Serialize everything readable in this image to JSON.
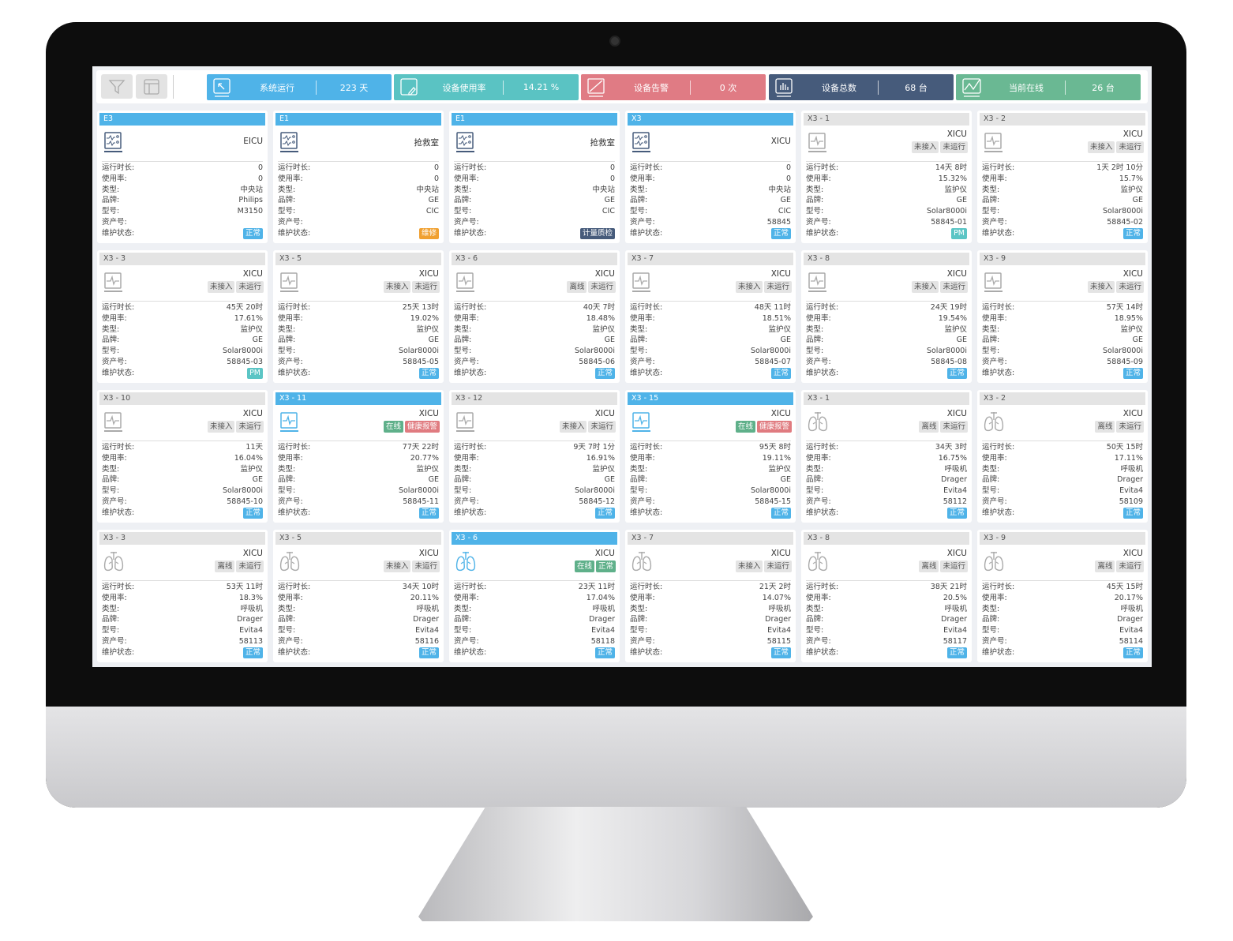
{
  "topbar": {
    "filter_icon": "filter-icon",
    "layout_icon": "layout-icon",
    "stats": [
      {
        "label": "系统运行",
        "value": "223 天",
        "color": "#4fb3e8",
        "icon": "arrow-icon"
      },
      {
        "label": "设备使用率",
        "value": "14.21 %",
        "color": "#5ac3c3",
        "icon": "edit-icon"
      },
      {
        "label": "设备告警",
        "value": "0 次",
        "color": "#e07b84",
        "icon": "slash-icon"
      },
      {
        "label": "设备总数",
        "value": "68 台",
        "color": "#465b7b",
        "icon": "bar-chart-icon"
      },
      {
        "label": "当前在线",
        "value": "26 台",
        "color": "#6ab893",
        "icon": "line-chart-icon"
      }
    ]
  },
  "labels": {
    "runtime": "运行时长:",
    "usage": "使用率:",
    "type": "类型:",
    "brand": "品牌:",
    "model": "型号:",
    "asset": "资产号:",
    "status": "维护状态:"
  },
  "colors": {
    "tag_gray": "#e4e4e4",
    "online": "#5fb08a",
    "alarm": "#e07b80",
    "normal": "#4fb3e8",
    "pm": "#5bc5c5",
    "repair": "#f0a030",
    "metrology": "#465b7b",
    "accent": "#4fb3e8"
  },
  "cards": [
    {
      "id": "E3",
      "active": true,
      "icon": "station",
      "location": "EICU",
      "tags": [],
      "runtime": "0",
      "usage": "0",
      "type": "中央站",
      "brand": "Philips",
      "model": "M3150",
      "asset": "",
      "status": "正常",
      "status_color": "normal"
    },
    {
      "id": "E1",
      "active": true,
      "icon": "station",
      "location": "抢救室",
      "tags": [],
      "runtime": "0",
      "usage": "0",
      "type": "中央站",
      "brand": "GE",
      "model": "CIC",
      "asset": "",
      "status": "维修",
      "status_color": "repair"
    },
    {
      "id": "E1",
      "active": true,
      "icon": "station",
      "location": "抢救室",
      "tags": [],
      "runtime": "0",
      "usage": "0",
      "type": "中央站",
      "brand": "GE",
      "model": "CIC",
      "asset": "",
      "status": "计量质检",
      "status_color": "metrology"
    },
    {
      "id": "X3",
      "active": true,
      "icon": "station",
      "location": "XICU",
      "tags": [],
      "runtime": "0",
      "usage": "0",
      "type": "中央站",
      "brand": "GE",
      "model": "CIC",
      "asset": "58845",
      "status": "正常",
      "status_color": "normal"
    },
    {
      "id": "X3 - 1",
      "active": false,
      "icon": "monitor",
      "location": "XICU",
      "tags": [
        {
          "text": "未接入",
          "color": "gray"
        },
        {
          "text": "未运行",
          "color": "gray"
        }
      ],
      "runtime": "14天 8时",
      "usage": "15.32%",
      "type": "监护仪",
      "brand": "GE",
      "model": "Solar8000i",
      "asset": "58845-01",
      "status": "PM",
      "status_color": "pm"
    },
    {
      "id": "X3 - 2",
      "active": false,
      "icon": "monitor",
      "location": "XICU",
      "tags": [
        {
          "text": "未接入",
          "color": "gray"
        },
        {
          "text": "未运行",
          "color": "gray"
        }
      ],
      "runtime": "1天 2时 10分",
      "usage": "15.7%",
      "type": "监护仪",
      "brand": "GE",
      "model": "Solar8000i",
      "asset": "58845-02",
      "status": "正常",
      "status_color": "normal"
    },
    {
      "id": "X3 - 3",
      "active": false,
      "icon": "monitor",
      "location": "XICU",
      "tags": [
        {
          "text": "未接入",
          "color": "gray"
        },
        {
          "text": "未运行",
          "color": "gray"
        }
      ],
      "runtime": "45天 20时",
      "usage": "17.61%",
      "type": "监护仪",
      "brand": "GE",
      "model": "Solar8000i",
      "asset": "58845-03",
      "status": "PM",
      "status_color": "pm"
    },
    {
      "id": "X3 - 5",
      "active": false,
      "icon": "monitor",
      "location": "XICU",
      "tags": [
        {
          "text": "未接入",
          "color": "gray"
        },
        {
          "text": "未运行",
          "color": "gray"
        }
      ],
      "runtime": "25天 13时",
      "usage": "19.02%",
      "type": "监护仪",
      "brand": "GE",
      "model": "Solar8000i",
      "asset": "58845-05",
      "status": "正常",
      "status_color": "normal"
    },
    {
      "id": "X3 - 6",
      "active": false,
      "icon": "monitor",
      "location": "XICU",
      "tags": [
        {
          "text": "离线",
          "color": "gray"
        },
        {
          "text": "未运行",
          "color": "gray"
        }
      ],
      "runtime": "40天 7时",
      "usage": "18.48%",
      "type": "监护仪",
      "brand": "GE",
      "model": "Solar8000i",
      "asset": "58845-06",
      "status": "正常",
      "status_color": "normal"
    },
    {
      "id": "X3 - 7",
      "active": false,
      "icon": "monitor",
      "location": "XICU",
      "tags": [
        {
          "text": "未接入",
          "color": "gray"
        },
        {
          "text": "未运行",
          "color": "gray"
        }
      ],
      "runtime": "48天 11时",
      "usage": "18.51%",
      "type": "监护仪",
      "brand": "GE",
      "model": "Solar8000i",
      "asset": "58845-07",
      "status": "正常",
      "status_color": "normal"
    },
    {
      "id": "X3 - 8",
      "active": false,
      "icon": "monitor",
      "location": "XICU",
      "tags": [
        {
          "text": "未接入",
          "color": "gray"
        },
        {
          "text": "未运行",
          "color": "gray"
        }
      ],
      "runtime": "24天 19时",
      "usage": "19.54%",
      "type": "监护仪",
      "brand": "GE",
      "model": "Solar8000i",
      "asset": "58845-08",
      "status": "正常",
      "status_color": "normal"
    },
    {
      "id": "X3 - 9",
      "active": false,
      "icon": "monitor",
      "location": "XICU",
      "tags": [
        {
          "text": "未接入",
          "color": "gray"
        },
        {
          "text": "未运行",
          "color": "gray"
        }
      ],
      "runtime": "57天 14时",
      "usage": "18.95%",
      "type": "监护仪",
      "brand": "GE",
      "model": "Solar8000i",
      "asset": "58845-09",
      "status": "正常",
      "status_color": "normal"
    },
    {
      "id": "X3 - 10",
      "active": false,
      "icon": "monitor",
      "location": "XICU",
      "tags": [
        {
          "text": "未接入",
          "color": "gray"
        },
        {
          "text": "未运行",
          "color": "gray"
        }
      ],
      "runtime": "11天",
      "usage": "16.04%",
      "type": "监护仪",
      "brand": "GE",
      "model": "Solar8000i",
      "asset": "58845-10",
      "status": "正常",
      "status_color": "normal"
    },
    {
      "id": "X3 - 11",
      "active": true,
      "icon": "monitor",
      "location": "XICU",
      "tags": [
        {
          "text": "在线",
          "color": "online"
        },
        {
          "text": "健康报警",
          "color": "alarm"
        }
      ],
      "runtime": "77天 22时",
      "usage": "20.77%",
      "type": "监护仪",
      "brand": "GE",
      "model": "Solar8000i",
      "asset": "58845-11",
      "status": "正常",
      "status_color": "normal"
    },
    {
      "id": "X3 - 12",
      "active": false,
      "icon": "monitor",
      "location": "XICU",
      "tags": [
        {
          "text": "未接入",
          "color": "gray"
        },
        {
          "text": "未运行",
          "color": "gray"
        }
      ],
      "runtime": "9天 7时 1分",
      "usage": "16.91%",
      "type": "监护仪",
      "brand": "GE",
      "model": "Solar8000i",
      "asset": "58845-12",
      "status": "正常",
      "status_color": "normal"
    },
    {
      "id": "X3 - 15",
      "active": true,
      "icon": "monitor",
      "location": "XICU",
      "tags": [
        {
          "text": "在线",
          "color": "online"
        },
        {
          "text": "健康报警",
          "color": "alarm"
        }
      ],
      "runtime": "95天 8时",
      "usage": "19.11%",
      "type": "监护仪",
      "brand": "GE",
      "model": "Solar8000i",
      "asset": "58845-15",
      "status": "正常",
      "status_color": "normal"
    },
    {
      "id": "X3 - 1",
      "active": false,
      "icon": "lungs",
      "location": "XICU",
      "tags": [
        {
          "text": "离线",
          "color": "gray"
        },
        {
          "text": "未运行",
          "color": "gray"
        }
      ],
      "runtime": "34天 3时",
      "usage": "16.75%",
      "type": "呼吸机",
      "brand": "Drager",
      "model": "Evita4",
      "asset": "58112",
      "status": "正常",
      "status_color": "normal"
    },
    {
      "id": "X3 - 2",
      "active": false,
      "icon": "lungs",
      "location": "XICU",
      "tags": [
        {
          "text": "离线",
          "color": "gray"
        },
        {
          "text": "未运行",
          "color": "gray"
        }
      ],
      "runtime": "50天 15时",
      "usage": "17.11%",
      "type": "呼吸机",
      "brand": "Drager",
      "model": "Evita4",
      "asset": "58109",
      "status": "正常",
      "status_color": "normal"
    },
    {
      "id": "X3 - 3",
      "active": false,
      "icon": "lungs",
      "location": "XICU",
      "tags": [
        {
          "text": "离线",
          "color": "gray"
        },
        {
          "text": "未运行",
          "color": "gray"
        }
      ],
      "runtime": "53天 11时",
      "usage": "18.3%",
      "type": "呼吸机",
      "brand": "Drager",
      "model": "Evita4",
      "asset": "58113",
      "status": "正常",
      "status_color": "normal"
    },
    {
      "id": "X3 - 5",
      "active": false,
      "icon": "lungs",
      "location": "XICU",
      "tags": [
        {
          "text": "未接入",
          "color": "gray"
        },
        {
          "text": "未运行",
          "color": "gray"
        }
      ],
      "runtime": "34天 10时",
      "usage": "20.11%",
      "type": "呼吸机",
      "brand": "Drager",
      "model": "Evita4",
      "asset": "58116",
      "status": "正常",
      "status_color": "normal"
    },
    {
      "id": "X3 - 6",
      "active": true,
      "icon": "lungs",
      "location": "XICU",
      "tags": [
        {
          "text": "在线",
          "color": "online"
        },
        {
          "text": "正常",
          "color": "online"
        }
      ],
      "runtime": "23天 11时",
      "usage": "17.04%",
      "type": "呼吸机",
      "brand": "Drager",
      "model": "Evita4",
      "asset": "58118",
      "status": "正常",
      "status_color": "normal"
    },
    {
      "id": "X3 - 7",
      "active": false,
      "icon": "lungs",
      "location": "XICU",
      "tags": [
        {
          "text": "未接入",
          "color": "gray"
        },
        {
          "text": "未运行",
          "color": "gray"
        }
      ],
      "runtime": "21天 2时",
      "usage": "14.07%",
      "type": "呼吸机",
      "brand": "Drager",
      "model": "Evita4",
      "asset": "58115",
      "status": "正常",
      "status_color": "normal"
    },
    {
      "id": "X3 - 8",
      "active": false,
      "icon": "lungs",
      "location": "XICU",
      "tags": [
        {
          "text": "离线",
          "color": "gray"
        },
        {
          "text": "未运行",
          "color": "gray"
        }
      ],
      "runtime": "38天 21时",
      "usage": "20.5%",
      "type": "呼吸机",
      "brand": "Drager",
      "model": "Evita4",
      "asset": "58117",
      "status": "正常",
      "status_color": "normal"
    },
    {
      "id": "X3 - 9",
      "active": false,
      "icon": "lungs",
      "location": "XICU",
      "tags": [
        {
          "text": "离线",
          "color": "gray"
        },
        {
          "text": "未运行",
          "color": "gray"
        }
      ],
      "runtime": "45天 15时",
      "usage": "20.17%",
      "type": "呼吸机",
      "brand": "Drager",
      "model": "Evita4",
      "asset": "58114",
      "status": "正常",
      "status_color": "normal"
    }
  ]
}
